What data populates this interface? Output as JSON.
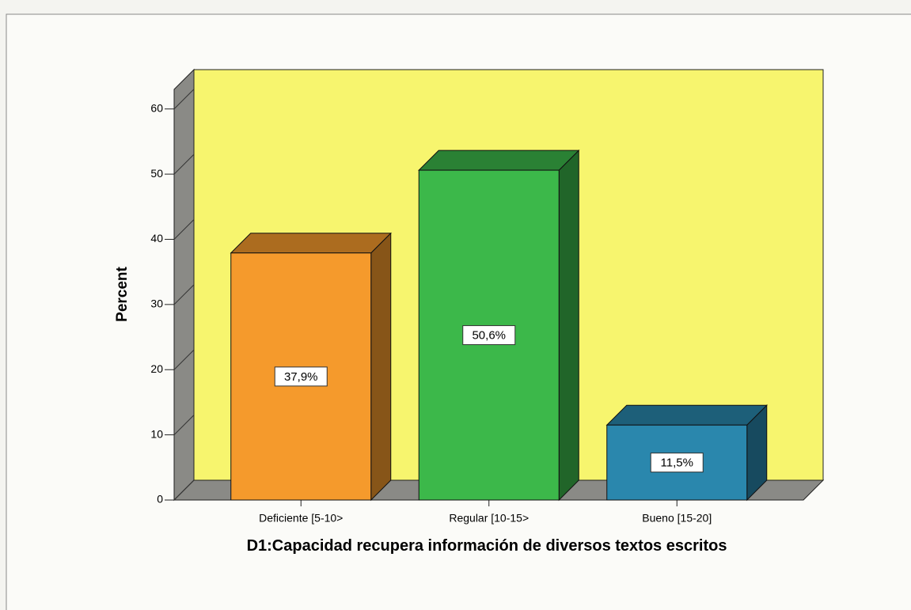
{
  "chart_data": {
    "type": "bar3d",
    "categories": [
      "Deficiente [5-10>",
      "Regular [10-15>",
      "Bueno [15-20]"
    ],
    "values": [
      37.9,
      50.6,
      11.5
    ],
    "value_labels": [
      "37,9%",
      "50,6%",
      "11,5%"
    ],
    "colors": [
      "#f59a2c",
      "#3cb84a",
      "#2a87ad"
    ],
    "ylabel": "Percent",
    "xlabel": "D1:Capacidad recupera información de diversos textos escritos",
    "ylim": [
      0,
      63
    ],
    "yticks": [
      0,
      10,
      20,
      30,
      40,
      50,
      60
    ]
  }
}
